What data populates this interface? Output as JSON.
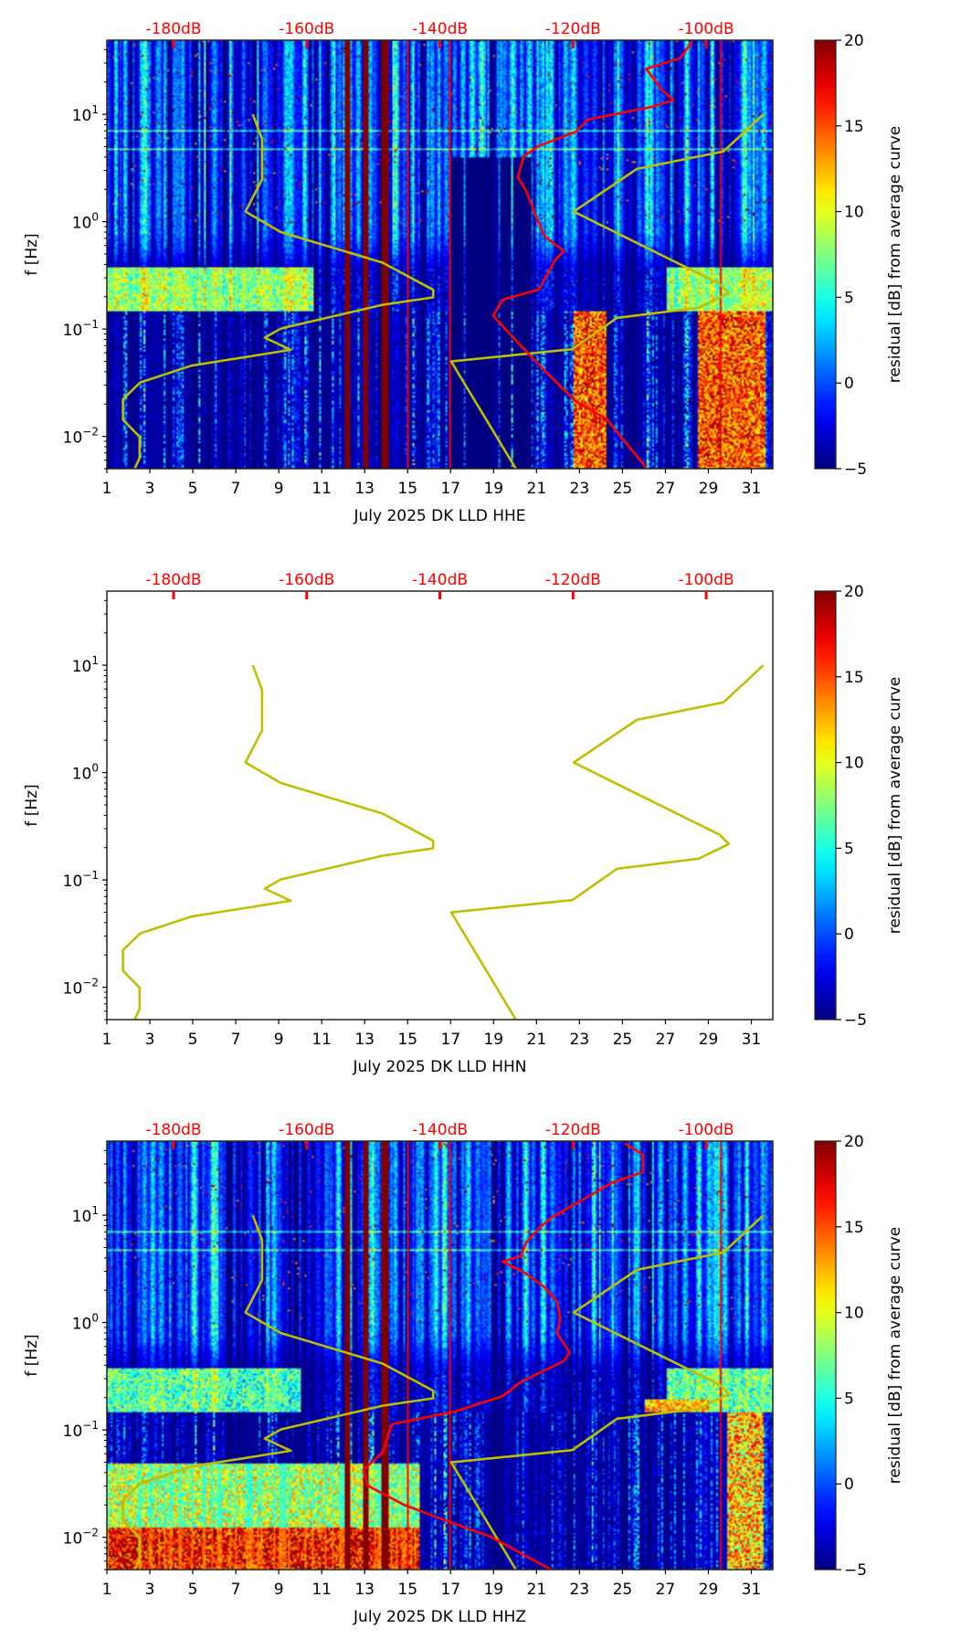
{
  "chart_data": [
    {
      "type": "heatmap",
      "channel": "HHE",
      "xlabel": "July 2025 DK LLD  HHE",
      "ylabel": "f [Hz]",
      "has_spectrogram": true,
      "median_curve": [
        [
          47.6,
          -102.1
        ],
        [
          33.3,
          -103.9
        ],
        [
          26.5,
          -109.0
        ],
        [
          16.9,
          -106.7
        ],
        [
          13.5,
          -104.9
        ],
        [
          11.6,
          -108.5
        ],
        [
          8.93,
          -117.8
        ],
        [
          6.87,
          -119.6
        ],
        [
          5.09,
          -125.1
        ],
        [
          4.06,
          -127.4
        ],
        [
          2.59,
          -128.3
        ],
        [
          1.92,
          -127.0
        ],
        [
          1.13,
          -125.6
        ],
        [
          0.723,
          -124.2
        ],
        [
          0.535,
          -121.4
        ],
        [
          0.428,
          -122.8
        ],
        [
          0.234,
          -125.1
        ],
        [
          0.187,
          -130.6
        ],
        [
          0.133,
          -132.0
        ],
        [
          0.0705,
          -127.9
        ],
        [
          0.0358,
          -123.3
        ],
        [
          0.0212,
          -119.6
        ],
        [
          0.0146,
          -115.0
        ],
        [
          0.0051,
          -109.0
        ]
      ]
    },
    {
      "type": "line",
      "channel": "HHN",
      "xlabel": "July 2025 DK LLD  HHN",
      "ylabel": "f [Hz]",
      "has_spectrogram": false,
      "median_curve": []
    },
    {
      "type": "heatmap",
      "channel": "HHZ",
      "xlabel": "July 2025 DK LLD  HHZ",
      "ylabel": "f [Hz]",
      "has_spectrogram": true,
      "median_curve": [
        [
          46.6,
          -112.2
        ],
        [
          36.6,
          -109.5
        ],
        [
          25.2,
          -109.5
        ],
        [
          20.1,
          -114.1
        ],
        [
          12.8,
          -119.6
        ],
        [
          9.49,
          -123.3
        ],
        [
          7.57,
          -125.1
        ],
        [
          5.61,
          -127.0
        ],
        [
          4.15,
          -127.9
        ],
        [
          3.71,
          -130.6
        ],
        [
          2.85,
          -127.0
        ],
        [
          2.11,
          -124.2
        ],
        [
          1.57,
          -122.4
        ],
        [
          1.08,
          -121.9
        ],
        [
          0.797,
          -122.4
        ],
        [
          0.527,
          -120.5
        ],
        [
          0.437,
          -121.4
        ],
        [
          0.278,
          -127.9
        ],
        [
          0.206,
          -130.6
        ],
        [
          0.147,
          -138.0
        ],
        [
          0.113,
          -147.2
        ],
        [
          0.0621,
          -148.6
        ],
        [
          0.0427,
          -151.4
        ],
        [
          0.0304,
          -150.9
        ],
        [
          0.0201,
          -145.4
        ],
        [
          0.0149,
          -139.9
        ],
        [
          0.0102,
          -132.5
        ],
        [
          0.005,
          -123.3
        ]
      ]
    }
  ],
  "axes": {
    "xlim": [
      1,
      32
    ],
    "xticks": [
      1,
      3,
      5,
      7,
      9,
      11,
      13,
      15,
      17,
      19,
      21,
      23,
      25,
      27,
      29,
      31
    ],
    "ylim": [
      0.005,
      49
    ],
    "yscale": "log",
    "yticks": [
      {
        "value": 10,
        "base": "10",
        "exp": "1"
      },
      {
        "value": 1,
        "base": "10",
        "exp": "0"
      },
      {
        "value": 0.1,
        "base": "10",
        "exp": "−1"
      },
      {
        "value": 0.01,
        "base": "10",
        "exp": "−2"
      }
    ],
    "top_ticks": [
      {
        "value": -180,
        "label": "-180dB"
      },
      {
        "value": -160,
        "label": "-160dB"
      },
      {
        "value": -140,
        "label": "-140dB"
      },
      {
        "value": -120,
        "label": "-120dB"
      },
      {
        "value": -100,
        "label": "-100dB"
      }
    ]
  },
  "noise_models": {
    "low": [
      [
        10,
        -168.1
      ],
      [
        5.87,
        -166.7
      ],
      [
        2.48,
        -166.7
      ],
      [
        1.24,
        -169.2
      ],
      [
        0.8,
        -163.9
      ],
      [
        0.415,
        -148.6
      ],
      [
        0.232,
        -141.0
      ],
      [
        0.197,
        -141.0
      ],
      [
        0.168,
        -148.6
      ],
      [
        0.101,
        -163.9
      ],
      [
        0.083,
        -166.3
      ],
      [
        0.064,
        -162.4
      ],
      [
        0.0456,
        -177.3
      ],
      [
        0.0318,
        -185.0
      ],
      [
        0.0222,
        -187.6
      ],
      [
        0.0143,
        -187.6
      ],
      [
        0.0099,
        -185.1
      ],
      [
        0.0063,
        -185.1
      ],
      [
        0.0049,
        -185.9
      ]
    ],
    "high": [
      [
        10,
        -91.4
      ],
      [
        4.51,
        -97.4
      ],
      [
        3.1,
        -110.4
      ],
      [
        1.24,
        -119.9
      ],
      [
        0.264,
        -98.0
      ],
      [
        0.216,
        -96.6
      ],
      [
        0.158,
        -101.1
      ],
      [
        0.127,
        -113.4
      ],
      [
        0.0649,
        -120.1
      ],
      [
        0.0499,
        -138.3
      ],
      [
        0.0049,
        -128.5
      ]
    ]
  },
  "colorbar": {
    "label": "residual [dB] from average curve",
    "clim": [
      -5,
      20
    ],
    "ticks": [
      {
        "value": 20,
        "label": "20"
      },
      {
        "value": 15,
        "label": "15"
      },
      {
        "value": 10,
        "label": "10"
      },
      {
        "value": 5,
        "label": "5"
      },
      {
        "value": 0,
        "label": "0"
      },
      {
        "value": -5,
        "label": "−5"
      }
    ]
  },
  "colors": {
    "noise_model": "#bfbf00",
    "median": "#ff0000",
    "top_axis": "#ff0000",
    "axis": "#000000"
  }
}
